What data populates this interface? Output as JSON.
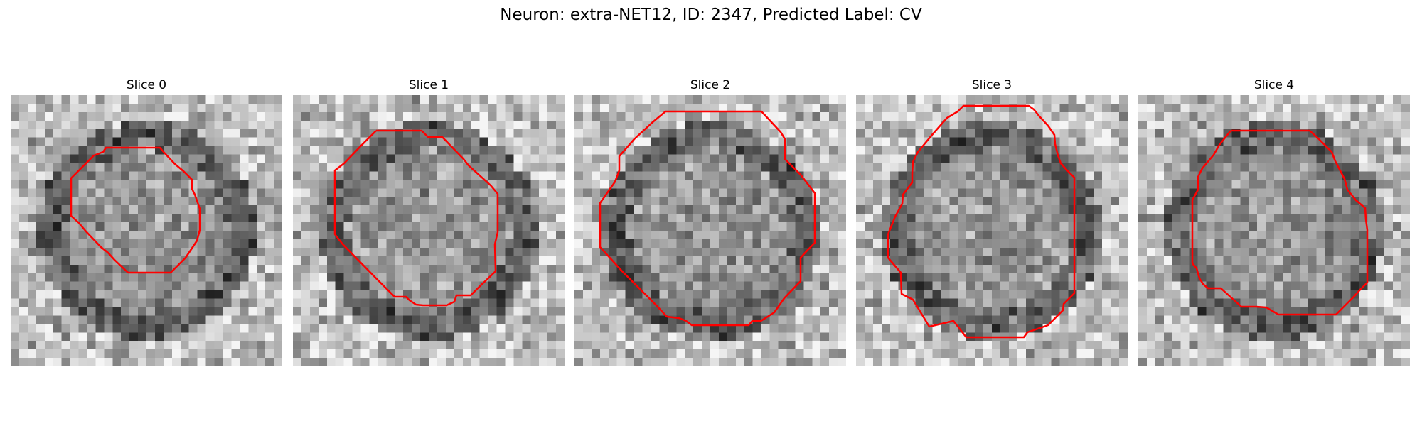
{
  "figure": {
    "title": "Neuron: extra-NET12, ID: 2347, Predicted Label: CV"
  },
  "panels": [
    {
      "title": "Slice 0"
    },
    {
      "title": "Slice 1"
    },
    {
      "title": "Slice 2"
    },
    {
      "title": "Slice 3"
    },
    {
      "title": "Slice 4"
    }
  ],
  "colors": {
    "contour": "#ff0000",
    "background": "#ffffff",
    "colormap": "gray"
  }
}
